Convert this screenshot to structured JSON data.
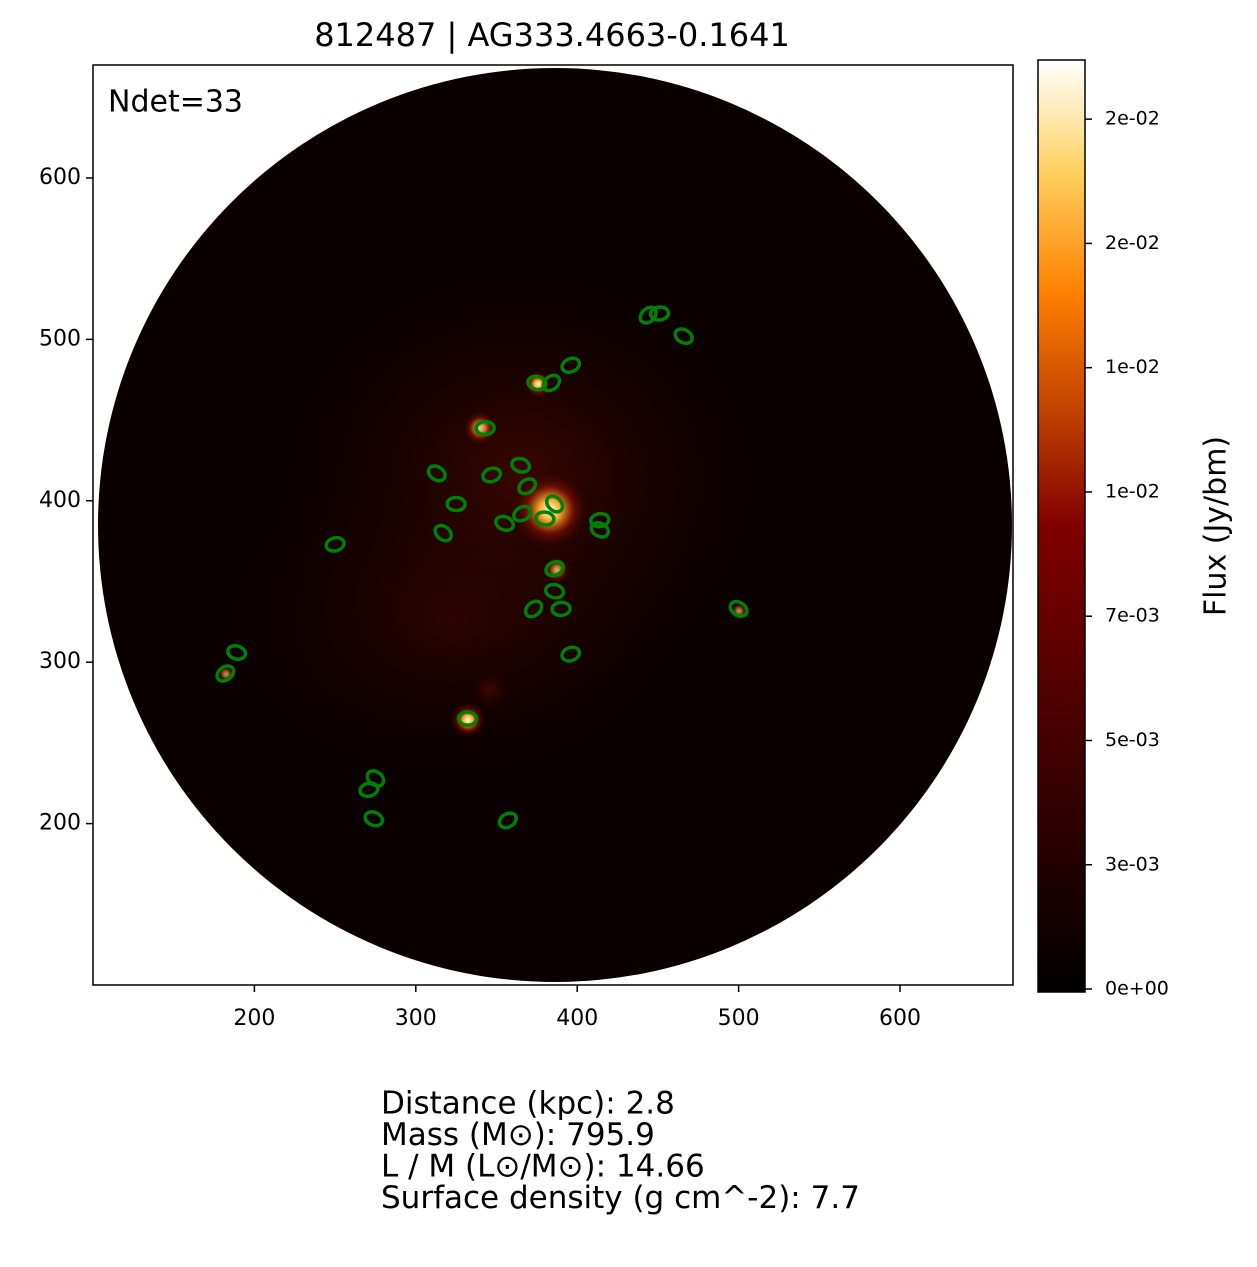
{
  "chart_data": {
    "type": "scatter",
    "title": "812487 | AG333.4663-0.1641",
    "annotation": "Ndet=33",
    "colorbar_label": "Flux (Jy/bm)",
    "colorbar_lim": [
      -6e-05,
      0.01869
    ],
    "colorbar_ticks": [
      {
        "value": 0,
        "label": "0e+00"
      },
      {
        "value": 0.0025,
        "label": "3e-03"
      },
      {
        "value": 0.005,
        "label": "5e-03"
      },
      {
        "value": 0.0075,
        "label": "7e-03"
      },
      {
        "value": 0.01,
        "label": "1e-02"
      },
      {
        "value": 0.0125,
        "label": "1e-02"
      },
      {
        "value": 0.015,
        "label": "2e-02"
      },
      {
        "value": 0.0175,
        "label": "2e-02"
      }
    ],
    "xlim": [
      100,
      670
    ],
    "ylim": [
      100,
      670
    ],
    "xticks": [
      200,
      300,
      400,
      500,
      600
    ],
    "yticks": [
      200,
      300,
      400,
      500,
      600
    ],
    "color": "#008000",
    "x": [
      444,
      451,
      466,
      396,
      375,
      384,
      343,
      313,
      347,
      365,
      369,
      325,
      317,
      250,
      355,
      366,
      380,
      386,
      414,
      414,
      386,
      386,
      373,
      390,
      500,
      396,
      189,
      182,
      332,
      275,
      271,
      274,
      357
    ],
    "values": [
      515,
      516,
      502,
      484,
      473,
      473,
      445,
      417,
      416,
      422,
      409,
      398,
      380,
      373,
      386,
      392,
      389,
      398,
      388,
      382,
      358,
      344,
      333,
      333,
      333,
      305,
      306,
      293,
      265,
      228,
      221,
      203,
      202
    ],
    "info": [
      "Distance (kpc): 2.8",
      "Mass (M⊙): 795.9",
      "L / M (L⊙/M⊙): 14.66",
      "Surface density (g cm^-2): 7.7"
    ]
  }
}
